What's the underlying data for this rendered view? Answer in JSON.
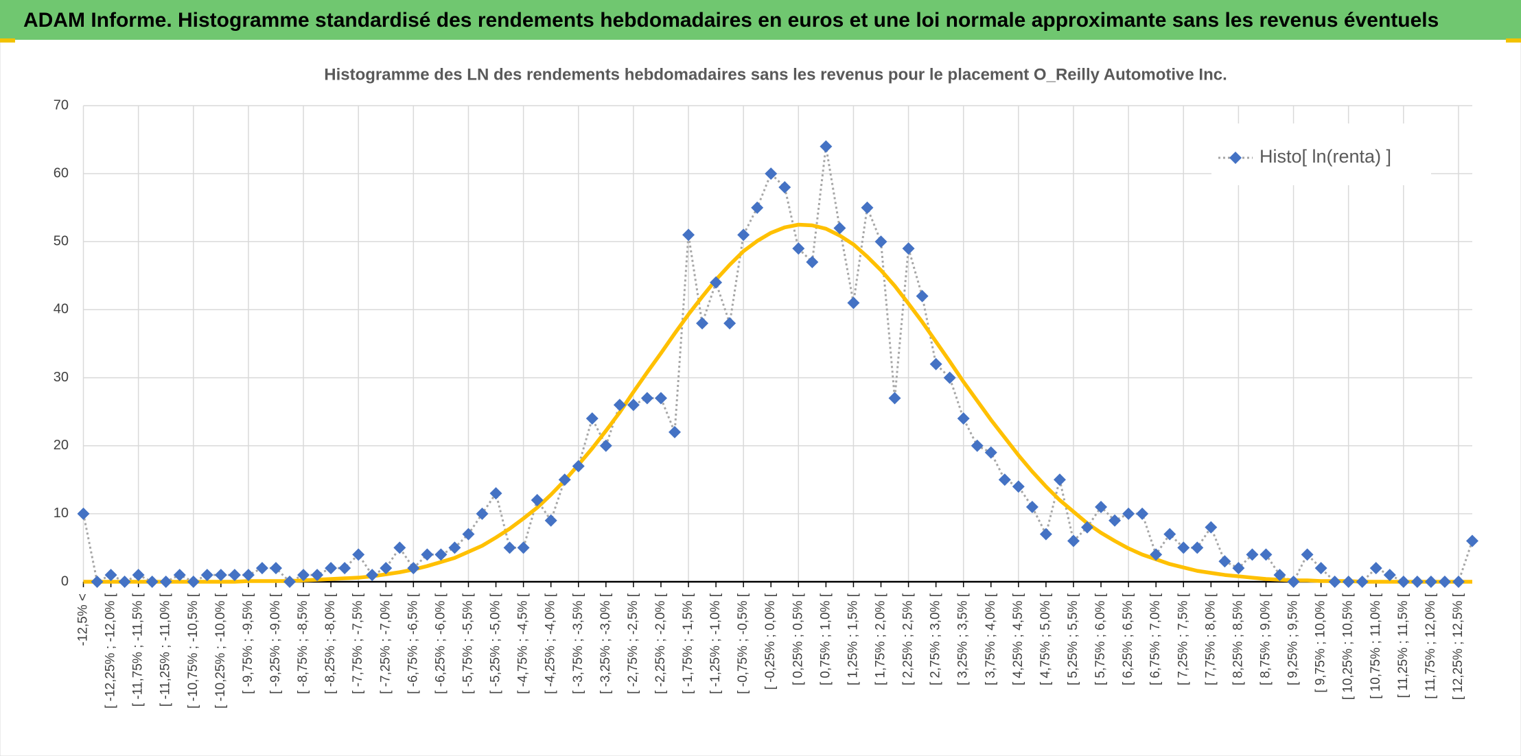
{
  "header": {
    "title": "ADAM Informe. Histogramme standardisé des rendements hebdomadaires en euros et une loi normale approximante sans les revenus éventuels"
  },
  "chart_data": {
    "type": "line",
    "title": "Histogramme des LN des rendements hebdomadaires sans les revenus pour le placement O_Reilly Automotive Inc.",
    "categories": [
      "-12,5% <",
      null,
      "[ -12,25% ; -12,0% [",
      null,
      "[ -11,75% ; -11,5% [",
      null,
      "[ -11,25% ; -11,0% [",
      null,
      "[ -10,75% ; -10,5% [",
      null,
      "[ -10,25% ; -10,0% [",
      null,
      "[ -9,75% ; -9,5% [",
      null,
      "[ -9,25% ; -9,0% [",
      null,
      "[ -8,75% ; -8,5% [",
      null,
      "[ -8,25% ; -8,0% [",
      null,
      "[ -7,75% ; -7,5% [",
      null,
      "[ -7,25% ; -7,0% [",
      null,
      "[ -6,75% ; -6,5% [",
      null,
      "[ -6,25% ; -6,0% [",
      null,
      "[ -5,75% ; -5,5% [",
      null,
      "[ -5,25% ; -5,0% [",
      null,
      "[ -4,75% ; -4,5% [",
      null,
      "[ -4,25% ; -4,0% [",
      null,
      "[ -3,75% ; -3,5% [",
      null,
      "[ -3,25% ; -3,0% [",
      null,
      "[ -2,75% ; -2,5% [",
      null,
      "[ -2,25% ; -2,0% [",
      null,
      "[ -1,75% ; -1,5% [",
      null,
      "[ -1,25% ; -1,0% [",
      null,
      "[ -0,75% ; -0,5% [",
      null,
      "[ -0,25% ; 0,0% [",
      null,
      "[ 0,25% ; 0,5% [",
      null,
      "[ 0,75% ; 1,0% [",
      null,
      "[ 1,25% ; 1,5% [",
      null,
      "[ 1,75% ; 2,0% [",
      null,
      "[ 2,25% ; 2,5% [",
      null,
      "[ 2,75% ; 3,0% [",
      null,
      "[ 3,25% ; 3,5% [",
      null,
      "[ 3,75% ; 4,0% [",
      null,
      "[ 4,25% ; 4,5% [",
      null,
      "[ 4,75% ; 5,0% [",
      null,
      "[ 5,25% ; 5,5% [",
      null,
      "[ 5,75% ; 6,0% [",
      null,
      "[ 6,25% ; 6,5% [",
      null,
      "[ 6,75% ; 7,0% [",
      null,
      "[ 7,25% ; 7,5% [",
      null,
      "[ 7,75% ; 8,0% [",
      null,
      "[ 8,25% ; 8,5% [",
      null,
      "[ 8,75% ; 9,0% [",
      null,
      "[ 9,25% ; 9,5% [",
      null,
      "[ 9,75% ; 10,0% [",
      null,
      "[ 10,25% ; 10,5% [",
      null,
      "[ 10,75% ; 11,0% [",
      null,
      "[ 11,25% ; 11,5% [",
      null,
      "[ 11,75% ; 12,0% [",
      null,
      "[ 12,25% ; 12,5% [",
      null
    ],
    "series": [
      {
        "name": "Histo[ ln(renta) ]",
        "color": "#4472c4",
        "line_color": "#a6a6a6",
        "marker": "diamond",
        "values": [
          10,
          0,
          1,
          0,
          1,
          0,
          0,
          1,
          0,
          1,
          1,
          1,
          1,
          2,
          2,
          0,
          1,
          1,
          2,
          2,
          4,
          1,
          2,
          5,
          2,
          4,
          4,
          5,
          7,
          10,
          13,
          5,
          5,
          12,
          9,
          15,
          17,
          24,
          20,
          26,
          26,
          27,
          27,
          22,
          51,
          38,
          44,
          38,
          51,
          55,
          60,
          58,
          49,
          47,
          64,
          52,
          41,
          55,
          50,
          27,
          49,
          42,
          32,
          30,
          24,
          20,
          19,
          15,
          14,
          11,
          7,
          15,
          6,
          8,
          11,
          9,
          10,
          10,
          4,
          7,
          5,
          5,
          8,
          3,
          2,
          4,
          4,
          1,
          0,
          4,
          2,
          0,
          0,
          0,
          2,
          1,
          0,
          0,
          0,
          0,
          0,
          6
        ]
      },
      {
        "color": "#ffc000",
        "values": [
          0,
          0,
          0,
          0,
          0,
          0,
          0,
          0,
          0,
          0,
          0,
          0,
          0.1,
          0.1,
          0.1,
          0.1,
          0.2,
          0.3,
          0.4,
          0.5,
          0.6,
          0.8,
          1.1,
          1.4,
          1.8,
          2.3,
          2.9,
          3.5,
          4.4,
          5.3,
          6.5,
          7.8,
          9.3,
          10.9,
          12.8,
          14.9,
          17.2,
          19.6,
          22.2,
          24.9,
          27.9,
          30.8,
          33.6,
          36.5,
          39.3,
          41.9,
          44.4,
          46.6,
          48.6,
          50.1,
          51.3,
          52.1,
          52.5,
          52.4,
          51.9,
          50.9,
          49.6,
          47.8,
          45.8,
          43.5,
          40.9,
          38.2,
          35.3,
          32.4,
          29.4,
          26.6,
          23.8,
          21.2,
          18.6,
          16.2,
          14.0,
          12.0,
          10.3,
          8.6,
          7.2,
          6.0,
          4.9,
          4.0,
          3.3,
          2.6,
          2.1,
          1.6,
          1.3,
          1.0,
          0.8,
          0.6,
          0.4,
          0.3,
          0.2,
          0.2,
          0.1,
          0.1,
          0.1,
          0,
          0,
          0,
          0,
          0,
          0,
          0,
          0,
          0
        ]
      }
    ],
    "ylim": [
      0,
      70
    ],
    "yticks": [
      0,
      10,
      20,
      30,
      40,
      50,
      60,
      70
    ],
    "grid": true,
    "legend": "upper right"
  }
}
